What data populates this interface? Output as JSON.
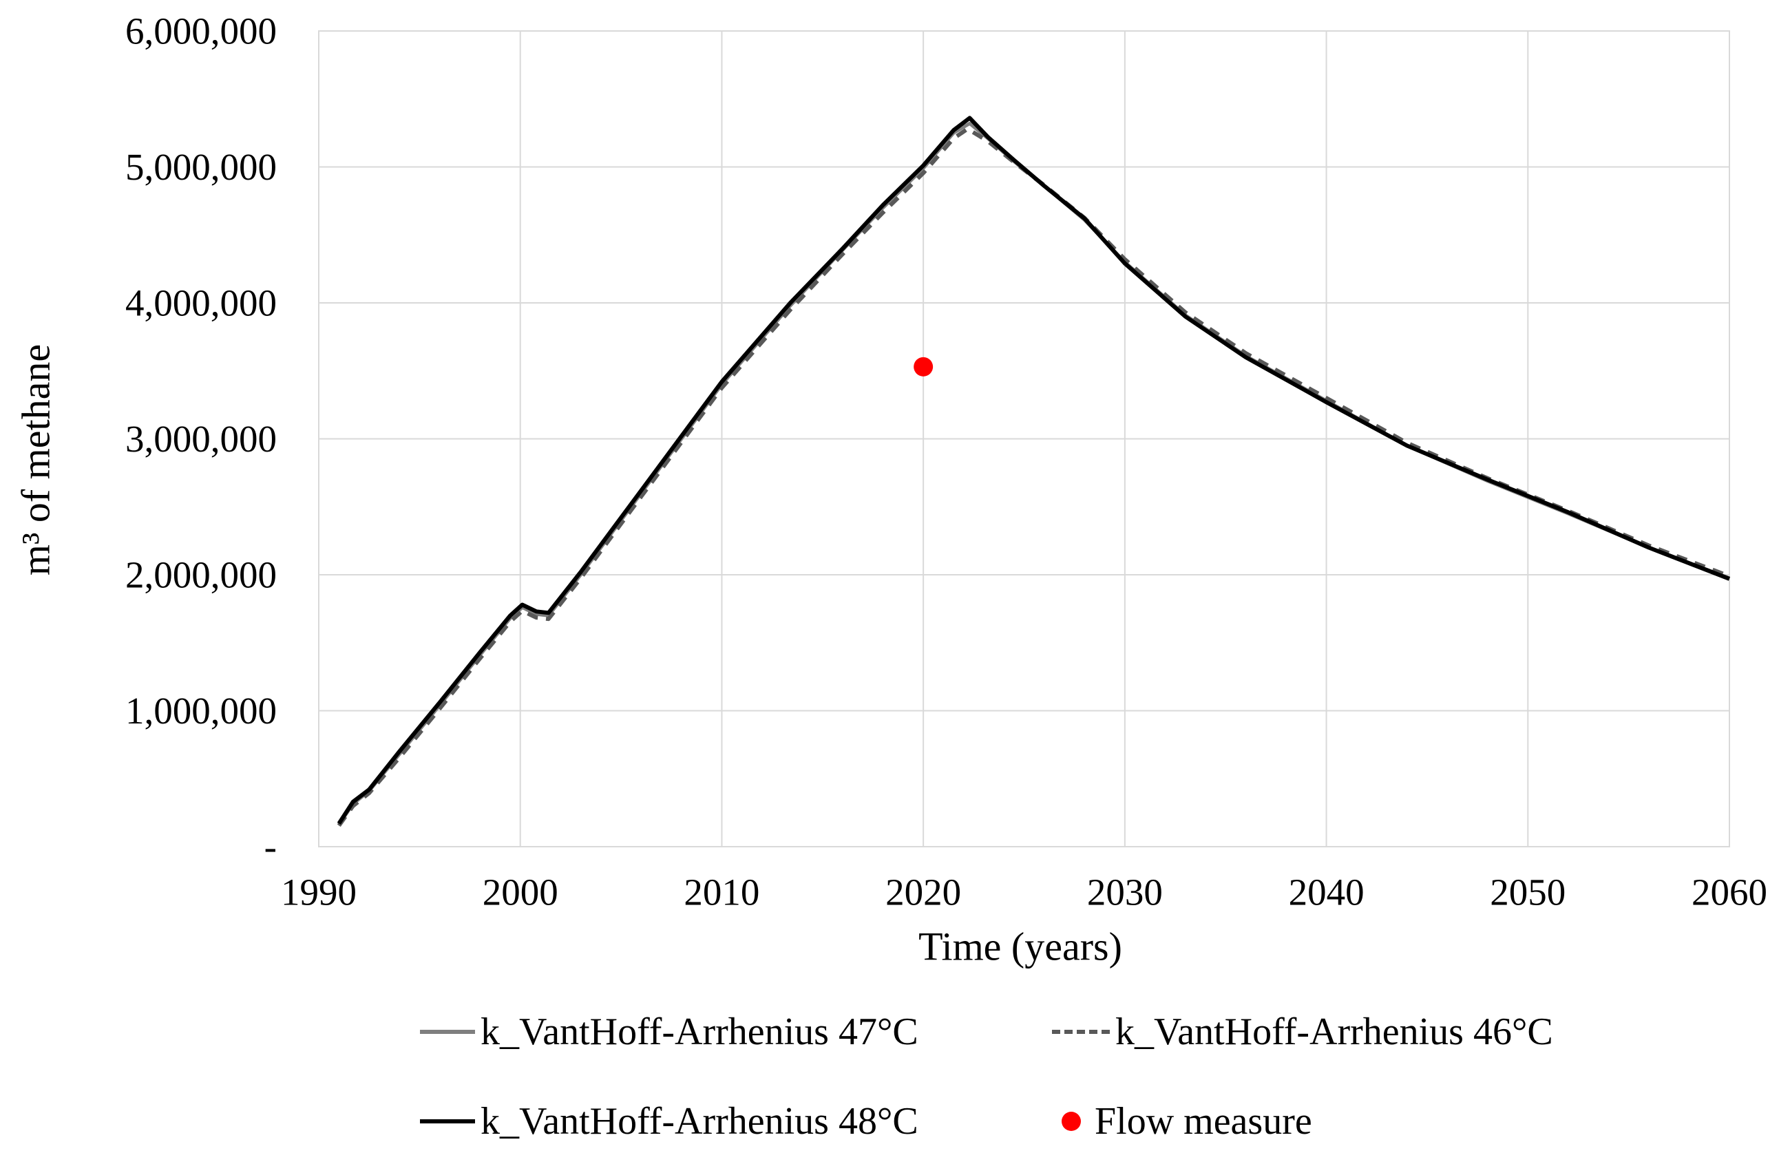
{
  "chart_data": {
    "type": "line",
    "title": "",
    "xlabel": "Time (years)",
    "ylabel": "m³ of methane",
    "xlim": [
      1990,
      2060
    ],
    "ylim": [
      0,
      6000000
    ],
    "grid": true,
    "grid_color": "#d9d9d9",
    "legend_position": "bottom",
    "x_ticks": [
      {
        "value": 1990,
        "label": "1990"
      },
      {
        "value": 2000,
        "label": "2000"
      },
      {
        "value": 2010,
        "label": "2010"
      },
      {
        "value": 2020,
        "label": "2020"
      },
      {
        "value": 2030,
        "label": "2030"
      },
      {
        "value": 2040,
        "label": "2040"
      },
      {
        "value": 2050,
        "label": "2050"
      },
      {
        "value": 2060,
        "label": "2060"
      }
    ],
    "y_ticks": [
      {
        "value": 0,
        "label": "-"
      },
      {
        "value": 1000000,
        "label": "1,000,000"
      },
      {
        "value": 2000000,
        "label": "2,000,000"
      },
      {
        "value": 3000000,
        "label": "3,000,000"
      },
      {
        "value": 4000000,
        "label": "4,000,000"
      },
      {
        "value": 5000000,
        "label": "5,000,000"
      },
      {
        "value": 6000000,
        "label": "6,000,000"
      }
    ],
    "series": [
      {
        "name": "k_VantHoff-Arrhenius 47°C",
        "color": "#7f7f7f",
        "style": "solid",
        "width": 5,
        "x": [
          1991,
          1991.7,
          1992.5,
          1994,
          1996,
          1998,
          1999.5,
          2000.1,
          2000.8,
          2001.4,
          2003,
          2006,
          2010,
          2013.4,
          2016,
          2018,
          2020,
          2021.5,
          2022.3,
          2023.2,
          2024.5,
          2026,
          2028,
          2030,
          2033,
          2036,
          2040,
          2044,
          2048,
          2052,
          2056,
          2060
        ],
        "values": [
          163000,
          315000,
          410000,
          680000,
          1040000,
          1410000,
          1680000,
          1760000,
          1710000,
          1700000,
          2000000,
          2600000,
          3400000,
          3980000,
          4390000,
          4700000,
          4990000,
          5250000,
          5320000,
          5210000,
          5040000,
          4860000,
          4610000,
          4300000,
          3910000,
          3610000,
          3280000,
          2950000,
          2690000,
          2450000,
          2200000,
          1975000
        ]
      },
      {
        "name": "k_VantHoff-Arrhenius 46°C",
        "color": "#595959",
        "style": "dashed",
        "width": 6,
        "x": [
          1991,
          1991.7,
          1992.5,
          1994,
          1996,
          1998,
          1999.5,
          2000.1,
          2000.8,
          2001.4,
          2003,
          2006,
          2010,
          2013.4,
          2016,
          2018,
          2020,
          2021.5,
          2022.2,
          2023.2,
          2024.5,
          2026,
          2028,
          2030,
          2033,
          2036,
          2040,
          2044,
          2048,
          2052,
          2056,
          2060
        ],
        "values": [
          155000,
          300000,
          395000,
          655000,
          1015000,
          1385000,
          1655000,
          1735000,
          1685000,
          1675000,
          1975000,
          2575000,
          3375000,
          3950000,
          4360000,
          4665000,
          4955000,
          5210000,
          5280000,
          5190000,
          5035000,
          4865000,
          4625000,
          4320000,
          3930000,
          3630000,
          3300000,
          2970000,
          2710000,
          2470000,
          2215000,
          1990000
        ]
      },
      {
        "name": "k_VantHoff-Arrhenius 48°C",
        "color": "#000000",
        "style": "solid",
        "width": 6,
        "x": [
          1991,
          1991.7,
          1992.5,
          1994,
          1996,
          1998,
          1999.5,
          2000.1,
          2000.8,
          2001.4,
          2003,
          2006,
          2010,
          2013.4,
          2016,
          2018,
          2020,
          2021.5,
          2022.3,
          2023.2,
          2024.5,
          2026,
          2028,
          2030,
          2033,
          2036,
          2040,
          2044,
          2048,
          2052,
          2056,
          2060
        ],
        "values": [
          170000,
          330000,
          420000,
          700000,
          1060000,
          1430000,
          1700000,
          1780000,
          1730000,
          1720000,
          2020000,
          2620000,
          3420000,
          4000000,
          4400000,
          4720000,
          5010000,
          5270000,
          5360000,
          5220000,
          5050000,
          4860000,
          4620000,
          4290000,
          3900000,
          3600000,
          3270000,
          2950000,
          2700000,
          2460000,
          2200000,
          1970000
        ]
      },
      {
        "name": "Flow measure",
        "color": "#ff0000",
        "style": "point",
        "point_radius": 14,
        "x": [
          2020
        ],
        "values": [
          3530000
        ]
      }
    ]
  },
  "legend": {
    "rows": 2,
    "columns": 2
  }
}
